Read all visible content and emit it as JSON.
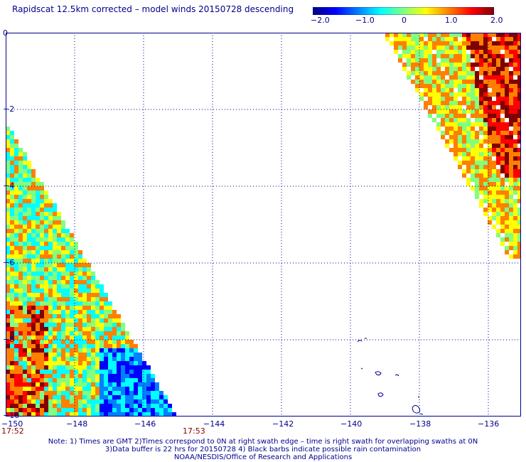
{
  "title": "Rapidscat 12.5km corrected – model winds 20150728 descending",
  "colorbar": {
    "ticks": [
      "−2.0",
      "−1.0",
      "0",
      "1.0",
      "2.0"
    ],
    "colors": [
      "#00007f",
      "#0000ff",
      "#0080ff",
      "#00ffff",
      "#80ff80",
      "#ffff00",
      "#ff8000",
      "#ff0000",
      "#7f0000"
    ]
  },
  "map": {
    "lat_labels": [
      "0",
      "−2",
      "−4",
      "−6",
      "−8",
      "−10"
    ],
    "lon_labels": [
      "−150",
      "−148",
      "−146",
      "−144",
      "−142",
      "−140",
      "−138",
      "−136"
    ],
    "lon_range": [
      -150,
      -135
    ],
    "lat_range": [
      -10,
      0
    ],
    "time_labels": {
      "left": "17:52",
      "right": "17:53"
    },
    "grid_color": "#00008b",
    "coast_color": "#00008b"
  },
  "notes": [
    "Note: 1) Times are GMT 2)Times correspond to 0N at right swath edge – time is right swath for overlapping swaths at 0N",
    "3)Data buffer is 22 hrs for 20150728 4) Black barbs indicate possible rain contamination",
    "NOAA/NESDIS/Office of Research and Applications"
  ]
}
